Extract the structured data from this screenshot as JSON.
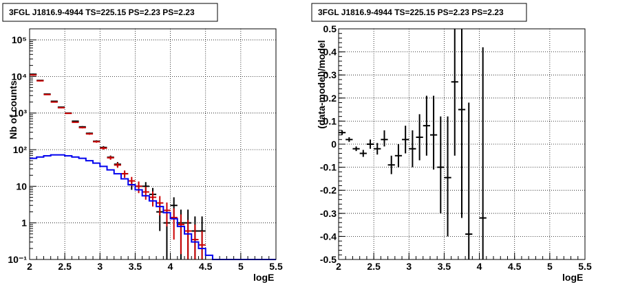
{
  "chart_data": [
    {
      "type": "line",
      "title": "3FGL J1816.9-4944 TS=225.15 PS=2.23 PS=2.23",
      "xlabel": "logE",
      "ylabel": "Nb of counts",
      "xlim": [
        2,
        5.5
      ],
      "ylim": [
        0.1,
        200000
      ],
      "yscale": "log",
      "grid": true,
      "xticks": [
        "2",
        "2.5",
        "3",
        "3.5",
        "4",
        "4.5",
        "5",
        "5.5"
      ],
      "yticks": [
        "10⁻¹",
        "1",
        "10",
        "10²",
        "10³",
        "10⁴",
        "10⁵"
      ],
      "series": [
        {
          "color": "#000000",
          "style": "points",
          "x": [
            2.05,
            2.15,
            2.25,
            2.35,
            2.45,
            2.55,
            2.65,
            2.75,
            2.85,
            2.95,
            3.05,
            3.15,
            3.25,
            3.35,
            3.45,
            3.55,
            3.65,
            3.75,
            3.85,
            3.95,
            4.05,
            4.15,
            4.25,
            4.35,
            4.45
          ],
          "y": [
            11500,
            7800,
            3300,
            2100,
            1450,
            1000,
            600,
            420,
            280,
            170,
            115,
            62,
            40,
            22,
            11,
            10,
            10,
            6,
            2,
            1,
            3,
            1,
            1,
            0.6,
            0.6
          ],
          "ylo": [
            11000,
            7600,
            3200,
            2050,
            1400,
            970,
            580,
            400,
            265,
            160,
            105,
            55,
            34,
            18,
            8,
            7,
            7,
            3.5,
            0.6,
            0.1,
            1.2,
            0.1,
            0.1,
            0.1,
            0.1
          ],
          "yhi": [
            12000,
            8000,
            3400,
            2150,
            1500,
            1030,
            620,
            440,
            295,
            180,
            125,
            69,
            46,
            26,
            14,
            13,
            13,
            9,
            3.5,
            2.3,
            5,
            2.3,
            2.3,
            1.5,
            1.5
          ]
        },
        {
          "color": "#cc0000",
          "style": "points",
          "x": [
            2.05,
            2.15,
            2.25,
            2.35,
            2.45,
            2.55,
            2.65,
            2.75,
            2.85,
            2.95,
            3.05,
            3.15,
            3.25,
            3.35,
            3.45,
            3.55,
            3.65,
            3.75,
            3.85,
            3.95,
            4.05,
            4.15,
            4.25,
            4.35,
            4.45
          ],
          "y": [
            11000,
            7600,
            3200,
            2000,
            1400,
            980,
            560,
            400,
            270,
            165,
            110,
            60,
            38,
            22,
            14,
            10,
            7,
            5,
            3.5,
            2.2,
            1.4,
            0.9,
            0.6,
            0.35,
            0.25
          ],
          "ylo": [
            10500,
            7300,
            3100,
            1950,
            1350,
            950,
            540,
            380,
            255,
            155,
            100,
            53,
            32,
            17,
            10,
            6.5,
            4.3,
            2.8,
            1.6,
            0.8,
            0.35,
            0.14,
            0.1,
            0.1,
            0.1
          ],
          "yhi": [
            11500,
            7900,
            3300,
            2050,
            1450,
            1010,
            580,
            420,
            285,
            175,
            120,
            67,
            44,
            27,
            18,
            13.5,
            9.7,
            7.2,
            5.4,
            3.6,
            2.5,
            1.7,
            1.2,
            0.9,
            0.6
          ]
        },
        {
          "color": "#0000ee",
          "style": "step",
          "edges": [
            2.0,
            2.1,
            2.2,
            2.3,
            2.4,
            2.5,
            2.6,
            2.7,
            2.8,
            2.9,
            3.0,
            3.1,
            3.2,
            3.3,
            3.4,
            3.5,
            3.6,
            3.7,
            3.8,
            3.9,
            4.0,
            4.1,
            4.2,
            4.3,
            4.4,
            4.5,
            4.6,
            5.5
          ],
          "values": [
            58,
            63,
            68,
            72,
            72,
            68,
            63,
            58,
            50,
            43,
            35,
            28,
            22,
            16,
            11,
            8,
            5.5,
            4,
            2.8,
            1.9,
            1.3,
            0.8,
            0.5,
            0.3,
            0.2,
            0.13,
            0.1
          ]
        }
      ]
    },
    {
      "type": "scatter",
      "title": "3FGL J1816.9-4944 TS=225.15 PS=2.23 PS=2.23",
      "xlabel": "logE",
      "ylabel": "(data-model)/model",
      "xlim": [
        2,
        5.5
      ],
      "ylim": [
        -0.5,
        0.5
      ],
      "grid": true,
      "xticks": [
        "2",
        "2.5",
        "3",
        "3.5",
        "4",
        "4.5",
        "5",
        "5.5"
      ],
      "yticks": [
        "-0.5",
        "-0.4",
        "-0.3",
        "-0.2",
        "-0.1",
        "0",
        "0.1",
        "0.2",
        "0.3",
        "0.4",
        "0.5"
      ],
      "series": [
        {
          "color": "#000000",
          "style": "points",
          "x": [
            2.05,
            2.15,
            2.25,
            2.35,
            2.45,
            2.55,
            2.65,
            2.75,
            2.85,
            2.95,
            3.05,
            3.15,
            3.25,
            3.35,
            3.45,
            3.55,
            3.65,
            3.75,
            3.85,
            4.05
          ],
          "y": [
            0.05,
            0.02,
            -0.02,
            -0.04,
            0.0,
            -0.02,
            0.02,
            -0.09,
            -0.05,
            0.02,
            -0.02,
            0.03,
            0.08,
            0.04,
            -0.1,
            -0.145,
            0.27,
            0.15,
            -0.39,
            -0.32
          ],
          "ylo": [
            0.04,
            0.01,
            -0.03,
            -0.055,
            -0.02,
            -0.045,
            -0.01,
            -0.13,
            -0.1,
            -0.04,
            -0.1,
            -0.07,
            -0.05,
            -0.11,
            -0.3,
            -0.4,
            -0.05,
            -0.32,
            -0.5,
            -0.5
          ],
          "yhi": [
            0.06,
            0.03,
            -0.01,
            -0.025,
            0.02,
            0.005,
            0.06,
            -0.05,
            0.0,
            0.08,
            0.06,
            0.13,
            0.21,
            0.21,
            0.12,
            0.12,
            0.5,
            0.5,
            0.18,
            0.42
          ]
        }
      ]
    }
  ]
}
